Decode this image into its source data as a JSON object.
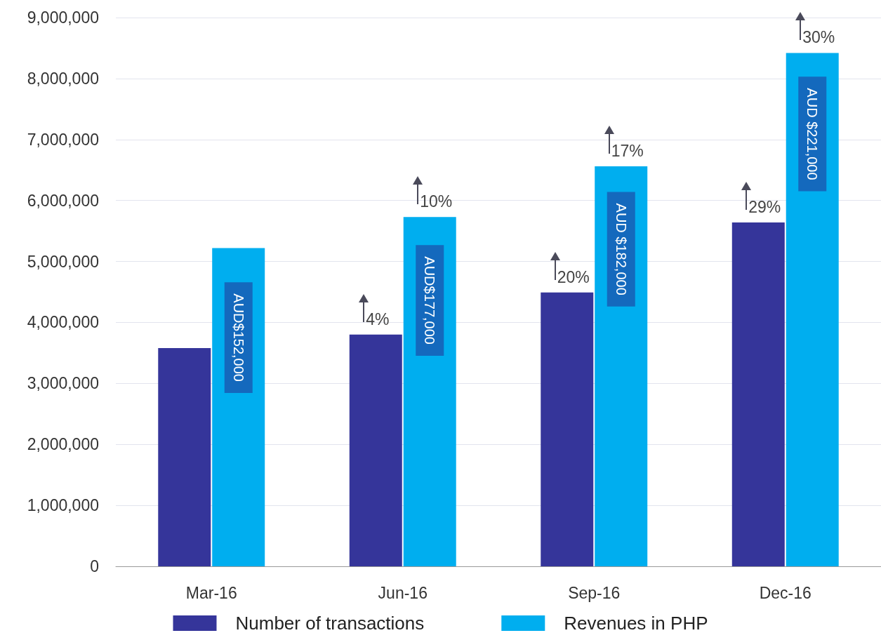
{
  "chart_data": {
    "type": "bar",
    "categories": [
      "Mar-16",
      "Jun-16",
      "Sep-16",
      "Dec-16"
    ],
    "series": [
      {
        "name": "Number of transactions",
        "color": "#35359a",
        "values": [
          3580000,
          3800000,
          4490000,
          5640000
        ]
      },
      {
        "name": "Revenues in PHP",
        "color": "#00aeef",
        "values": [
          5220000,
          5730000,
          6560000,
          8420000
        ]
      }
    ],
    "annotations": [
      {
        "text": "4%",
        "x": "Jun-16",
        "y": 3800000
      },
      {
        "text": "20%",
        "x": "Sep-16",
        "y": 4490000
      },
      {
        "text": "29%",
        "x": "Dec-16",
        "y": 5640000
      },
      {
        "text": "10%",
        "x": "Jun-16",
        "y": 5730000
      },
      {
        "text": "17%",
        "x": "Sep-16",
        "y": 6560000
      },
      {
        "text": "30%",
        "x": "Dec-16",
        "y": 8420000
      },
      {
        "text": "AUD$152,000",
        "x": "Mar-16",
        "y": 3750000
      },
      {
        "text": "AUD$177,000",
        "x": "Jun-16",
        "y": 4360000
      },
      {
        "text": "AUD $182,000",
        "x": "Sep-16",
        "y": 5200000
      },
      {
        "text": "AUD $221,000",
        "x": "Dec-16",
        "y": 7090000
      }
    ],
    "ylim": [
      0,
      9000000
    ],
    "yticks": [
      0,
      {
        "value": 1000000,
        "label": "1,000,000"
      },
      {
        "value": 2000000,
        "label": "2,000,000"
      },
      {
        "value": 3000000,
        "label": "3,000,000"
      },
      {
        "value": 4000000,
        "label": "4,000,000"
      },
      {
        "value": 5000000,
        "label": "5,000,000"
      },
      {
        "value": 6000000,
        "label": "6,000,000"
      },
      {
        "value": 7000000,
        "label": "7,000,000"
      },
      {
        "value": 8000000,
        "label": "8,000,000"
      },
      {
        "value": 9000000,
        "label": "9,000,000"
      }
    ],
    "grid": "y",
    "legend": "bottom"
  }
}
